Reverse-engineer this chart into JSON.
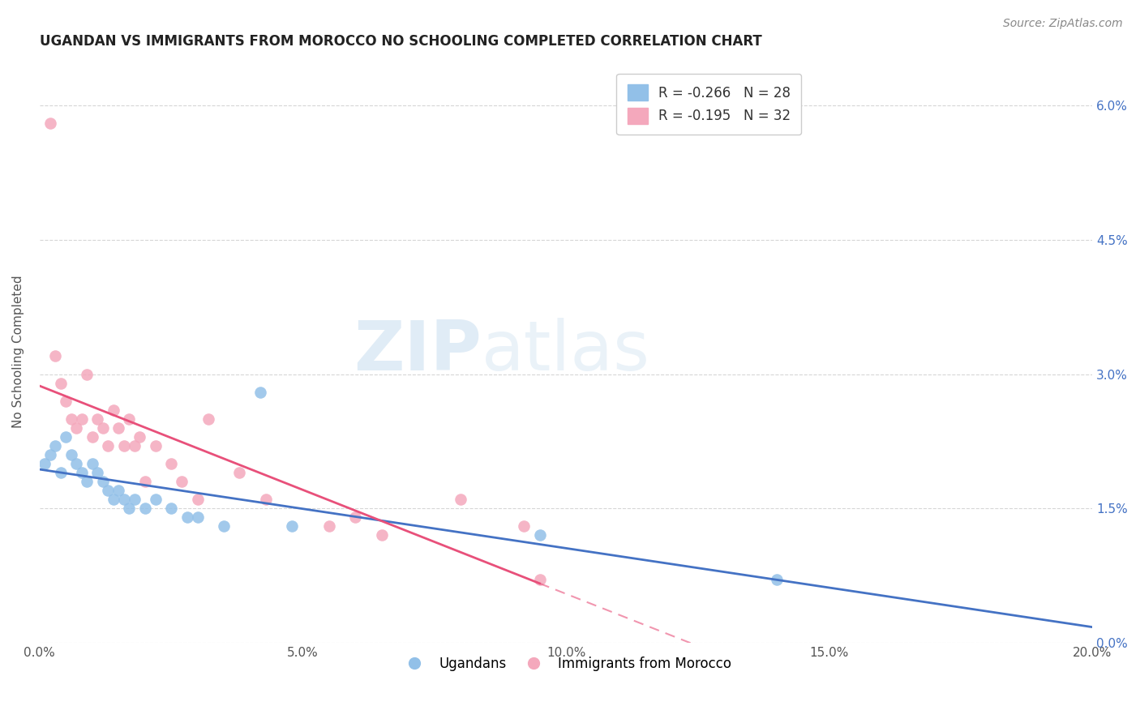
{
  "title": "UGANDAN VS IMMIGRANTS FROM MOROCCO NO SCHOOLING COMPLETED CORRELATION CHART",
  "source": "Source: ZipAtlas.com",
  "ylabel": "No Schooling Completed",
  "xlim": [
    0.0,
    0.2
  ],
  "ylim": [
    0.0,
    0.065
  ],
  "x_ticks": [
    0.0,
    0.05,
    0.1,
    0.15,
    0.2
  ],
  "x_tick_labels": [
    "0.0%",
    "5.0%",
    "10.0%",
    "15.0%",
    "20.0%"
  ],
  "y_ticks": [
    0.0,
    0.015,
    0.03,
    0.045,
    0.06
  ],
  "y_tick_labels_right": [
    "0.0%",
    "1.5%",
    "3.0%",
    "4.5%",
    "6.0%"
  ],
  "legend_label_blue": "R = -0.266   N = 28",
  "legend_label_pink": "R = -0.195   N = 32",
  "legend_bottom_blue": "Ugandans",
  "legend_bottom_pink": "Immigrants from Morocco",
  "blue_color": "#92C0E8",
  "pink_color": "#F4A8BC",
  "blue_line_color": "#4472C4",
  "pink_line_color": "#E8507A",
  "ugandan_x": [
    0.001,
    0.002,
    0.003,
    0.004,
    0.005,
    0.006,
    0.007,
    0.008,
    0.009,
    0.01,
    0.011,
    0.012,
    0.013,
    0.014,
    0.015,
    0.016,
    0.017,
    0.018,
    0.02,
    0.022,
    0.025,
    0.028,
    0.03,
    0.035,
    0.042,
    0.048,
    0.095,
    0.14
  ],
  "ugandan_y": [
    0.02,
    0.021,
    0.022,
    0.019,
    0.023,
    0.021,
    0.02,
    0.019,
    0.018,
    0.02,
    0.019,
    0.018,
    0.017,
    0.016,
    0.017,
    0.016,
    0.015,
    0.016,
    0.015,
    0.016,
    0.015,
    0.014,
    0.014,
    0.013,
    0.028,
    0.013,
    0.012,
    0.007
  ],
  "morocco_x": [
    0.002,
    0.003,
    0.004,
    0.005,
    0.006,
    0.007,
    0.008,
    0.009,
    0.01,
    0.011,
    0.012,
    0.013,
    0.014,
    0.015,
    0.016,
    0.017,
    0.018,
    0.019,
    0.02,
    0.022,
    0.025,
    0.027,
    0.03,
    0.032,
    0.038,
    0.043,
    0.055,
    0.06,
    0.065,
    0.08,
    0.092,
    0.095
  ],
  "morocco_y": [
    0.058,
    0.032,
    0.029,
    0.027,
    0.025,
    0.024,
    0.025,
    0.03,
    0.023,
    0.025,
    0.024,
    0.022,
    0.026,
    0.024,
    0.022,
    0.025,
    0.022,
    0.023,
    0.018,
    0.022,
    0.02,
    0.018,
    0.016,
    0.025,
    0.019,
    0.016,
    0.013,
    0.014,
    0.012,
    0.016,
    0.013,
    0.007
  ],
  "background_color": "#FFFFFF",
  "grid_color": "#CCCCCC",
  "watermark_zip_color": "#C8DCF0",
  "watermark_atlas_color": "#C8DCF0"
}
